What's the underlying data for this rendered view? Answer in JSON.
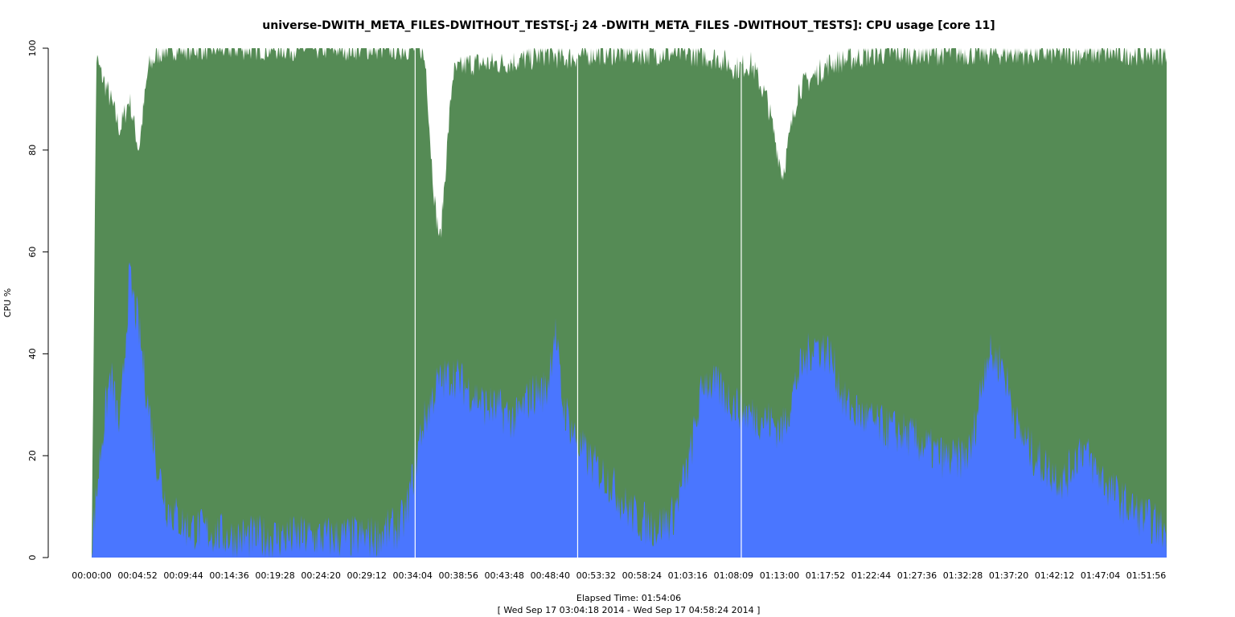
{
  "chart_data": {
    "type": "area",
    "title": "universe-DWITH_META_FILES-DWITHOUT_TESTS[-j 24 -DWITH_META_FILES -DWITHOUT_TESTS]: CPU usage [core 11]",
    "ylabel": "CPU %",
    "xlabel": "Elapsed Time: 01:54:06",
    "xlabel2": "[ Wed Sep 17 03:04:18 2014 - Wed Sep 17 04:58:24 2014 ]",
    "ylim": [
      0,
      100
    ],
    "yticks": [
      0,
      20,
      40,
      60,
      80,
      100
    ],
    "xlim_seconds": [
      0,
      6846
    ],
    "xtick_seconds": [
      0,
      292,
      584,
      876,
      1168,
      1460,
      1752,
      2044,
      2336,
      2628,
      2920,
      3212,
      3504,
      3796,
      4088,
      4380,
      4672,
      4964,
      5256,
      5548,
      5840,
      6132,
      6424,
      6716
    ],
    "xtick_labels": [
      "00:00:00",
      "00:04:52",
      "00:09:44",
      "00:14:36",
      "00:19:28",
      "00:24:20",
      "00:29:12",
      "00:34:04",
      "00:38:56",
      "00:43:48",
      "00:48:40",
      "00:53:32",
      "00:58:24",
      "01:03:16",
      "01:08:09",
      "01:13:00",
      "01:17:52",
      "01:22:44",
      "01:27:36",
      "01:32:28",
      "01:37:20",
      "01:42:12",
      "01:47:04",
      "01:51:56"
    ],
    "grid": false,
    "colors": {
      "green_series": "#558b55",
      "blue_series": "#4a76ff",
      "axis": "#000000",
      "background": "#ffffff"
    },
    "series": [
      {
        "color": "#4a76ff",
        "stacked_on": null,
        "x_seconds": [
          0,
          60,
          120,
          180,
          240,
          300,
          360,
          420,
          480,
          600,
          900,
          1200,
          1500,
          1800,
          1950,
          2000,
          2100,
          2200,
          2300,
          2400,
          2500,
          2600,
          2700,
          2800,
          2900,
          2950,
          3000,
          3100,
          3200,
          3300,
          3400,
          3500,
          3600,
          3700,
          3800,
          3900,
          4000,
          4100,
          4200,
          4300,
          4400,
          4500,
          4600,
          4700,
          4800,
          4900,
          5000,
          5100,
          5200,
          5300,
          5400,
          5500,
          5600,
          5700,
          5800,
          5900,
          6000,
          6100,
          6200,
          6300,
          6400,
          6500,
          6600,
          6700,
          6846
        ],
        "values": [
          2,
          22,
          36,
          25,
          55,
          45,
          30,
          18,
          10,
          6,
          4,
          4,
          4,
          4,
          6,
          8,
          25,
          34,
          36,
          33,
          30,
          29,
          27,
          32,
          33,
          45,
          30,
          22,
          18,
          15,
          10,
          7,
          6,
          8,
          18,
          35,
          33,
          30,
          28,
          27,
          25,
          36,
          42,
          40,
          30,
          28,
          26,
          25,
          24,
          22,
          20,
          19,
          21,
          40,
          38,
          25,
          20,
          17,
          15,
          22,
          17,
          13,
          10,
          8,
          5
        ]
      },
      {
        "color": "#558b55",
        "stacked_on": null,
        "x_seconds": [
          0,
          30,
          60,
          120,
          180,
          240,
          300,
          330,
          360,
          420,
          480,
          600,
          1800,
          2100,
          2130,
          2160,
          2190,
          2220,
          2250,
          2300,
          2400,
          2600,
          2800,
          2900,
          3000,
          3200,
          3600,
          3800,
          4000,
          4100,
          4200,
          4300,
          4400,
          4500,
          4700,
          5000,
          5500,
          6000,
          6500,
          6846
        ],
        "values": [
          0,
          98,
          95,
          90,
          84,
          90,
          80,
          88,
          96,
          99,
          100,
          100,
          100,
          100,
          96,
          80,
          68,
          62,
          75,
          95,
          97,
          97,
          98,
          99,
          98,
          99,
          99,
          99,
          98,
          96,
          97,
          90,
          75,
          92,
          97,
          99,
          99,
          99,
          99,
          99
        ]
      }
    ]
  }
}
